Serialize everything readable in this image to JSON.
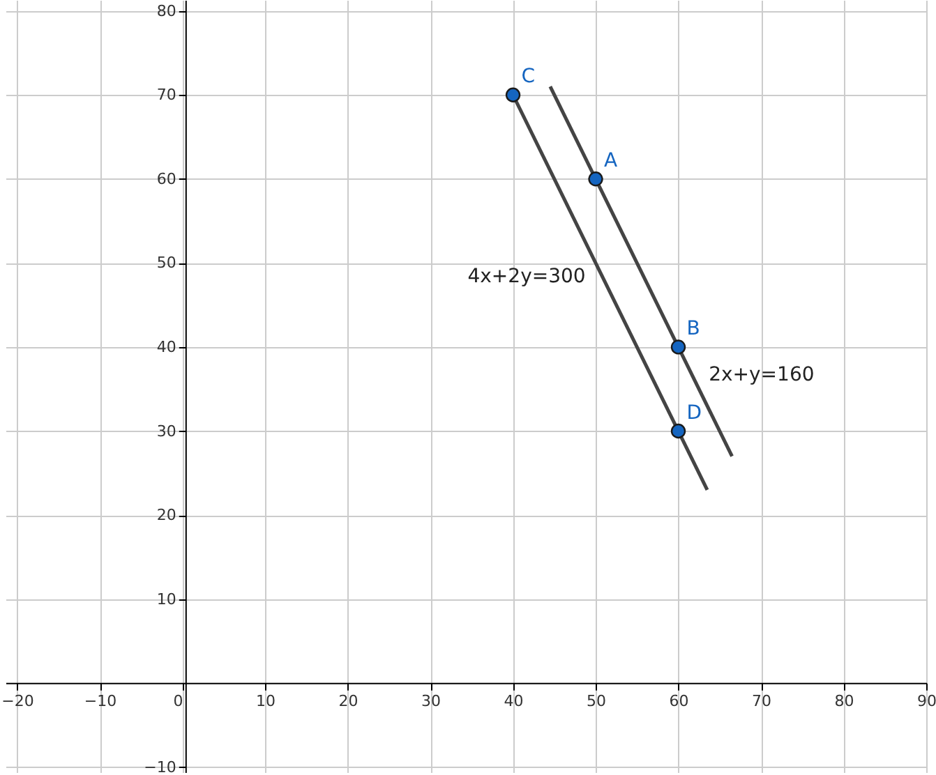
{
  "chart_data": {
    "type": "line",
    "xlim": [
      -21.4,
      90
    ],
    "ylim": [
      -10.6,
      81.3
    ],
    "xticks": [
      -20,
      -10,
      0,
      10,
      20,
      30,
      40,
      50,
      60,
      70,
      80,
      90
    ],
    "yticks": [
      -10,
      10,
      20,
      30,
      40,
      50,
      60,
      70,
      80
    ],
    "grid": true,
    "series": [
      {
        "type": "line",
        "name": "4x+2y=300",
        "color": "#444444",
        "x": [
          40,
          63.5
        ],
        "values": [
          70,
          23
        ]
      },
      {
        "type": "line",
        "name": "2x+y=160",
        "color": "#444444",
        "x": [
          44.5,
          66.5
        ],
        "values": [
          71,
          27
        ]
      },
      {
        "type": "scatter",
        "color": "#1565c0",
        "marker": "circle",
        "x": [
          40,
          50,
          60,
          60
        ],
        "values": [
          70,
          60,
          40,
          30
        ],
        "value_labels": [
          "C",
          "A",
          "B",
          "D"
        ]
      }
    ]
  }
}
